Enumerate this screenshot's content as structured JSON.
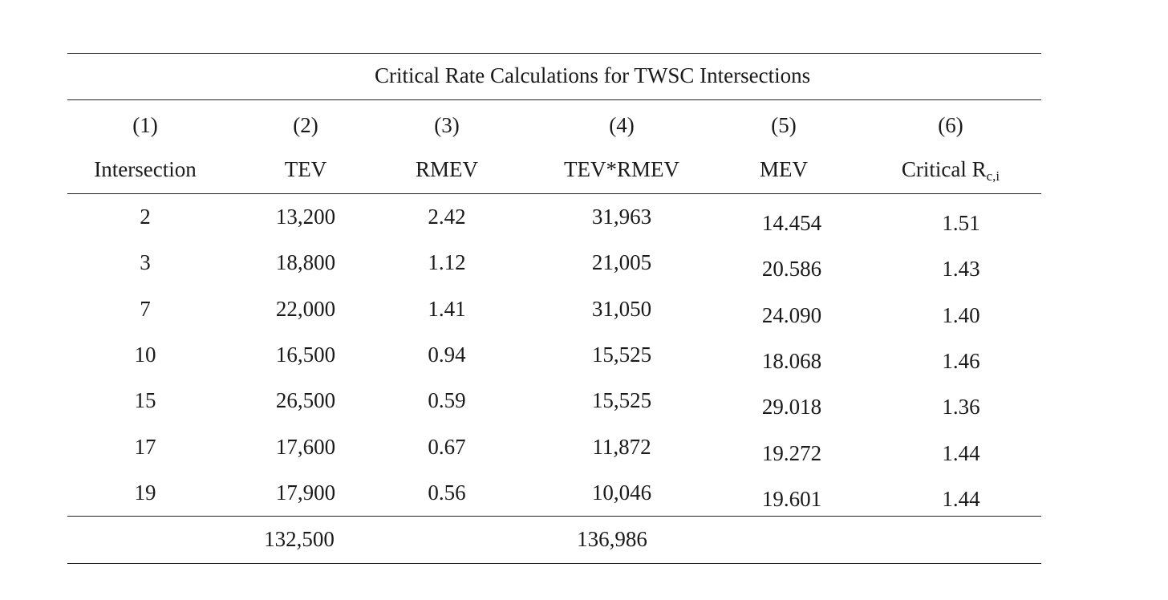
{
  "table": {
    "title": "Critical Rate Calculations for TWSC Intersections",
    "column_numbers": [
      "(1)",
      "(2)",
      "(3)",
      "(4)",
      "(5)",
      "(6)"
    ],
    "column_headers": [
      "Intersection",
      "TEV",
      "RMEV",
      "TEV*RMEV",
      "MEV",
      "Critical R"
    ],
    "critical_subscript": "c,i",
    "rows": [
      {
        "intersection": "2",
        "tev": "13,200",
        "rmev": "2.42",
        "tev_rmev": "31,963",
        "mev": "14.454",
        "critical": "1.51"
      },
      {
        "intersection": "3",
        "tev": "18,800",
        "rmev": "1.12",
        "tev_rmev": "21,005",
        "mev": "20.586",
        "critical": "1.43"
      },
      {
        "intersection": "7",
        "tev": "22,000",
        "rmev": "1.41",
        "tev_rmev": "31,050",
        "mev": "24.090",
        "critical": "1.40"
      },
      {
        "intersection": "10",
        "tev": "16,500",
        "rmev": "0.94",
        "tev_rmev": "15,525",
        "mev": "18.068",
        "critical": "1.46"
      },
      {
        "intersection": "15",
        "tev": "26,500",
        "rmev": "0.59",
        "tev_rmev": "15,525",
        "mev": "29.018",
        "critical": "1.36"
      },
      {
        "intersection": "17",
        "tev": "17,600",
        "rmev": "0.67",
        "tev_rmev": "11,872",
        "mev": "19.272",
        "critical": "1.44"
      },
      {
        "intersection": "19",
        "tev": "17,900",
        "rmev": "0.56",
        "tev_rmev": "10,046",
        "mev": "19.601",
        "critical": "1.44"
      }
    ],
    "totals": {
      "tev": "132,500",
      "tev_rmev": "136,986"
    }
  }
}
